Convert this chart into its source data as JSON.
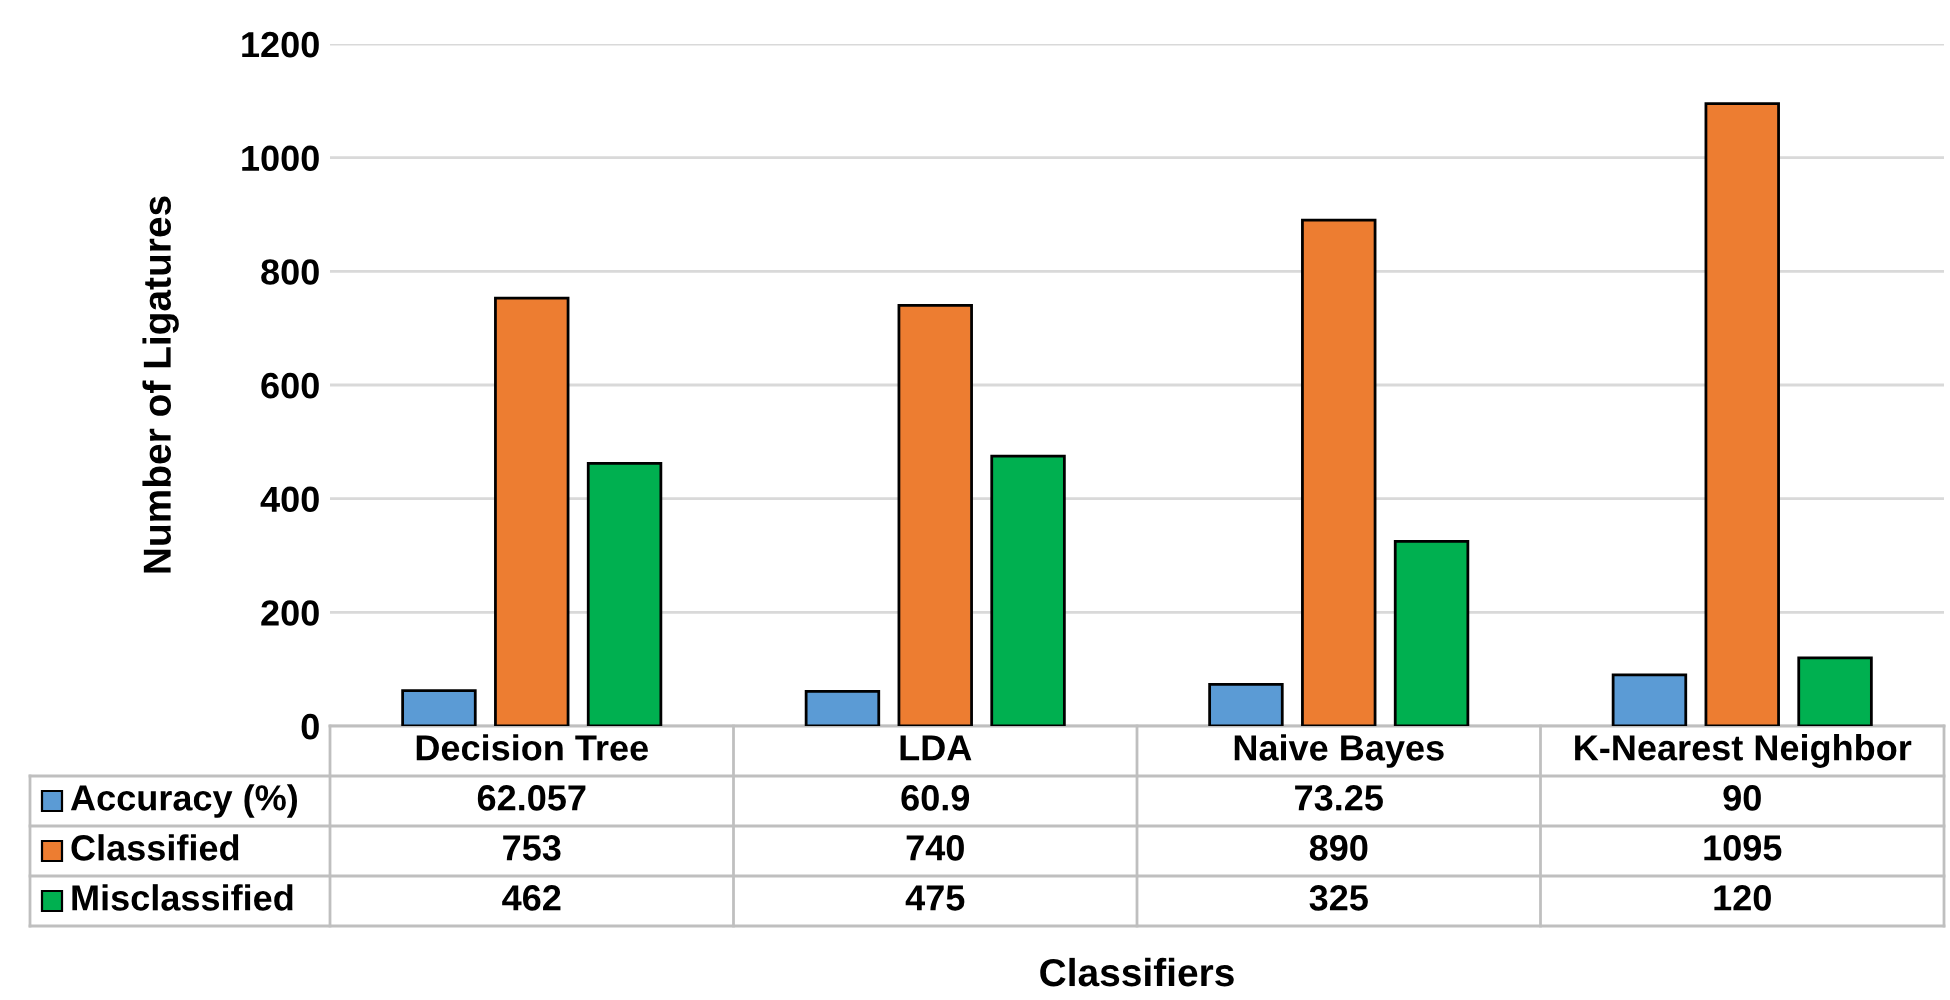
{
  "chart_data": {
    "type": "bar",
    "xlabel": "Classifiers",
    "ylabel": "Number of Ligatures",
    "categories": [
      "Decision Tree",
      "LDA",
      "Naive Bayes",
      "K-Nearest Neighbor"
    ],
    "series": [
      {
        "name": "Accuracy (%)",
        "color": "#5b9bd5",
        "values": [
          62.057,
          60.9,
          73.25,
          90
        ]
      },
      {
        "name": "Classified",
        "color": "#ed7d31",
        "values": [
          753,
          740,
          890,
          1095
        ]
      },
      {
        "name": "Misclassified",
        "color": "#00b050",
        "values": [
          462,
          475,
          325,
          120
        ]
      }
    ],
    "ylim": [
      0,
      1200
    ],
    "yticks": [
      0,
      200,
      400,
      600,
      800,
      1000,
      1200
    ],
    "grid": "y",
    "data_labels": true,
    "legend": "bottom"
  }
}
